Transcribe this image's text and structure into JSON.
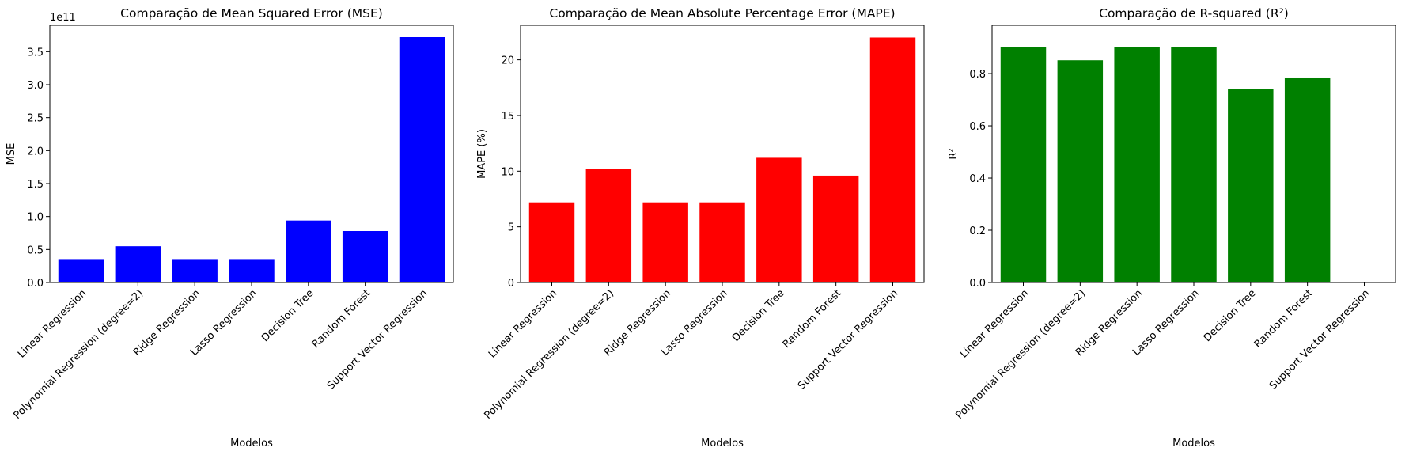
{
  "chart_data": [
    {
      "type": "bar",
      "title": "Comparação de Mean Squared Error (MSE)",
      "xlabel": "Modelos",
      "ylabel": "MSE",
      "offset_text": "1e11",
      "color": "#0000ff",
      "categories": [
        "Linear Regression",
        "Polynomial Regression (degree=2)",
        "Ridge Regression",
        "Lasso Regression",
        "Decision Tree",
        "Random Forest",
        "Support Vector Regression"
      ],
      "values": [
        35500000000,
        55000000000,
        35500000000,
        35500000000,
        94000000000,
        78000000000,
        372000000000
      ],
      "ylim": [
        0,
        390000000000
      ],
      "yticks": [
        0,
        50000000000,
        100000000000,
        150000000000,
        200000000000,
        250000000000,
        300000000000,
        350000000000
      ],
      "ytick_labels": [
        "0.0",
        "0.5",
        "1.0",
        "1.5",
        "2.0",
        "2.5",
        "3.0",
        "3.5"
      ],
      "grid": false,
      "legend": "none"
    },
    {
      "type": "bar",
      "title": "Comparação de Mean Absolute Percentage Error (MAPE)",
      "xlabel": "Modelos",
      "ylabel": "MAPE (%)",
      "offset_text": "",
      "color": "#ff0000",
      "categories": [
        "Linear Regression",
        "Polynomial Regression (degree=2)",
        "Ridge Regression",
        "Lasso Regression",
        "Decision Tree",
        "Random Forest",
        "Support Vector Regression"
      ],
      "values": [
        7.2,
        10.2,
        7.2,
        7.2,
        11.2,
        9.6,
        22.0
      ],
      "ylim": [
        0,
        23.1
      ],
      "yticks": [
        0,
        5,
        10,
        15,
        20
      ],
      "ytick_labels": [
        "0",
        "5",
        "10",
        "15",
        "20"
      ],
      "grid": false,
      "legend": "none"
    },
    {
      "type": "bar",
      "title": "Comparação de R-squared (R²)",
      "xlabel": "Modelos",
      "ylabel": "R²",
      "offset_text": "",
      "color": "#008000",
      "categories": [
        "Linear Regression",
        "Polynomial Regression (degree=2)",
        "Ridge Regression",
        "Lasso Regression",
        "Decision Tree",
        "Random Forest",
        "Support Vector Regression"
      ],
      "values": [
        0.902,
        0.851,
        0.902,
        0.902,
        0.741,
        0.785,
        0.0
      ],
      "ylim": [
        0,
        0.985
      ],
      "yticks": [
        0.0,
        0.2,
        0.4,
        0.6,
        0.8
      ],
      "ytick_labels": [
        "0.0",
        "0.2",
        "0.4",
        "0.6",
        "0.8"
      ],
      "grid": false,
      "legend": "none"
    }
  ]
}
